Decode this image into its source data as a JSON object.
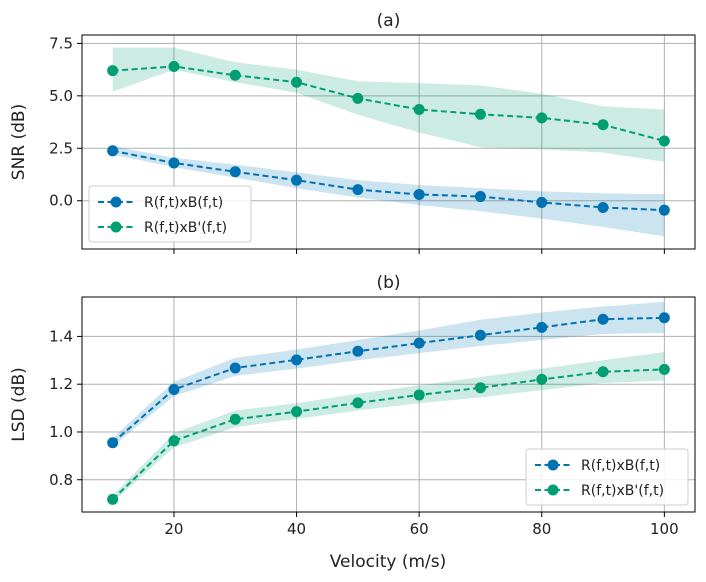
{
  "chart_data": [
    {
      "type": "line",
      "title": "(a)",
      "xlabel": "",
      "ylabel": "SNR (dB)",
      "xlim": [
        5,
        105
      ],
      "ylim": [
        -2.3,
        7.9
      ],
      "xticks": [
        20,
        40,
        60,
        80,
        100
      ],
      "yticks": [
        0.0,
        2.5,
        5.0,
        7.5
      ],
      "ytick_labels": [
        "0.0",
        "2.5",
        "5.0",
        "7.5"
      ],
      "grid": true,
      "legend": "lower-left",
      "x": [
        10,
        20,
        30,
        40,
        50,
        60,
        70,
        80,
        90,
        100
      ],
      "series": [
        {
          "name": "R(f,t)xB(f,t)",
          "color": "#0072B2",
          "values": [
            2.38,
            1.8,
            1.38,
            0.98,
            0.53,
            0.3,
            0.2,
            -0.08,
            -0.32,
            -0.45
          ],
          "band_upper": [
            2.6,
            2.05,
            1.72,
            1.35,
            0.98,
            0.75,
            0.6,
            0.45,
            0.35,
            0.32
          ],
          "band_lower": [
            2.2,
            1.6,
            1.1,
            0.6,
            0.15,
            -0.2,
            -0.5,
            -0.85,
            -1.25,
            -1.7
          ]
        },
        {
          "name": "R(f,t)xB'(f,t)",
          "color": "#009E73",
          "values": [
            6.2,
            6.4,
            5.98,
            5.65,
            4.88,
            4.35,
            4.12,
            3.95,
            3.62,
            2.85
          ],
          "band_upper": [
            7.3,
            7.3,
            6.6,
            6.25,
            5.7,
            5.6,
            5.5,
            5.1,
            4.5,
            4.35
          ],
          "band_lower": [
            5.2,
            6.25,
            5.65,
            5.15,
            4.1,
            3.25,
            2.55,
            2.45,
            2.3,
            1.85
          ]
        }
      ]
    },
    {
      "type": "line",
      "title": "(b)",
      "xlabel": "Velocity (m/s)",
      "ylabel": "LSD (dB)",
      "xlim": [
        5,
        105
      ],
      "ylim": [
        0.665,
        1.565
      ],
      "xticks": [
        20,
        40,
        60,
        80,
        100
      ],
      "xtick_labels": [
        "20",
        "40",
        "60",
        "80",
        "100"
      ],
      "yticks": [
        0.8,
        1.0,
        1.2,
        1.4
      ],
      "ytick_labels": [
        "0.8",
        "1.0",
        "1.2",
        "1.4"
      ],
      "grid": true,
      "legend": "lower-right",
      "x": [
        10,
        20,
        30,
        40,
        50,
        60,
        70,
        80,
        90,
        100
      ],
      "series": [
        {
          "name": "R(f,t)xB(f,t)",
          "color": "#0072B2",
          "values": [
            0.955,
            1.178,
            1.268,
            1.302,
            1.338,
            1.372,
            1.405,
            1.438,
            1.472,
            1.478
          ],
          "band_upper": [
            0.975,
            1.21,
            1.31,
            1.345,
            1.385,
            1.425,
            1.47,
            1.5,
            1.525,
            1.545
          ],
          "band_lower": [
            0.94,
            1.15,
            1.235,
            1.265,
            1.3,
            1.33,
            1.36,
            1.385,
            1.41,
            1.415
          ]
        },
        {
          "name": "R(f,t)xB'(f,t)",
          "color": "#009E73",
          "values": [
            0.718,
            0.963,
            1.053,
            1.085,
            1.122,
            1.155,
            1.185,
            1.22,
            1.252,
            1.262
          ],
          "band_upper": [
            0.735,
            0.995,
            1.09,
            1.12,
            1.16,
            1.195,
            1.23,
            1.265,
            1.3,
            1.335
          ],
          "band_lower": [
            0.705,
            0.935,
            1.02,
            1.055,
            1.09,
            1.12,
            1.145,
            1.175,
            1.205,
            1.215
          ]
        }
      ]
    }
  ]
}
